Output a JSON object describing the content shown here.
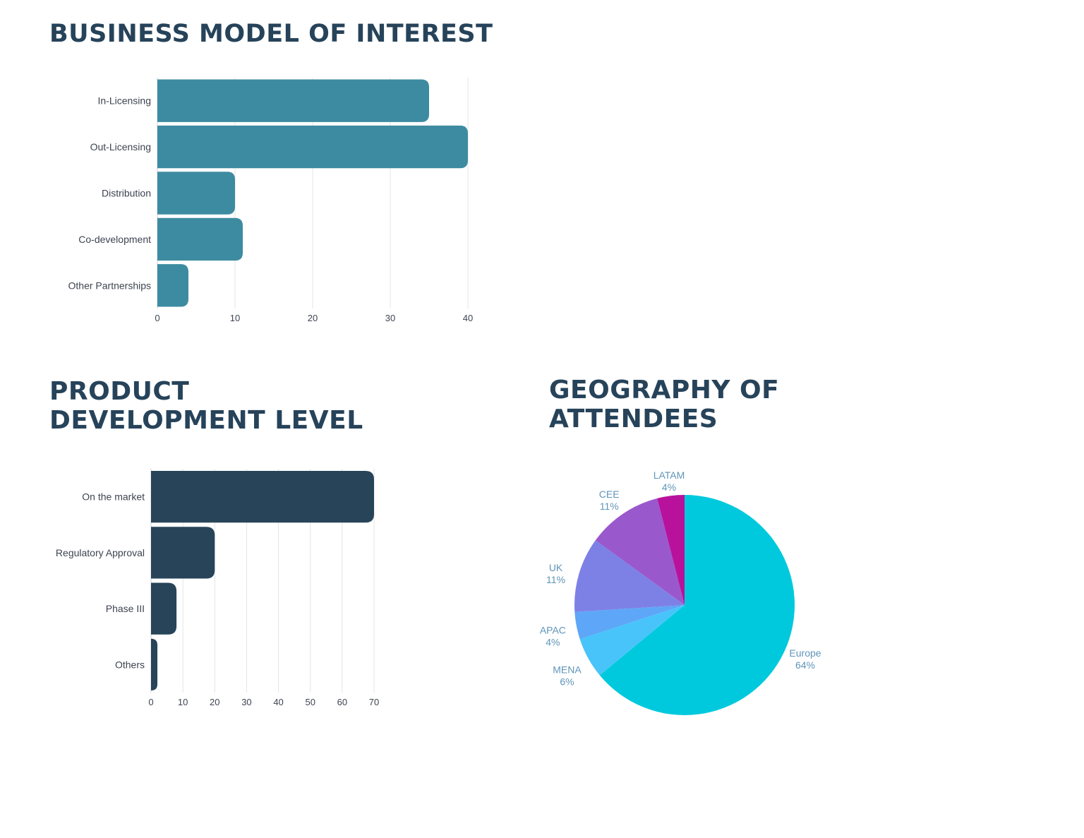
{
  "colors": {
    "title": "#26435a",
    "grid": "#e4e4e4",
    "label": "#3d4450",
    "pie_label": "#5f95b8"
  },
  "chart_data": [
    {
      "id": "business-model",
      "type": "bar",
      "orientation": "horizontal",
      "title": "BUSINESS MODEL OF INTEREST",
      "categories": [
        "In-Licensing",
        "Out-Licensing",
        "Distribution",
        "Co-development",
        "Other Partnerships"
      ],
      "values": [
        35,
        40,
        10,
        11,
        4
      ],
      "xlim": [
        0,
        40
      ],
      "xticks": [
        0,
        10,
        20,
        30,
        40
      ],
      "grid": true,
      "color": "#3d8ba1"
    },
    {
      "id": "product-development",
      "type": "bar",
      "orientation": "horizontal",
      "title": "PRODUCT\nDEVELOPMENT LEVEL",
      "categories": [
        "On the market",
        "Regulatory Approval",
        "Phase III",
        "Others"
      ],
      "values": [
        70,
        20,
        8,
        2
      ],
      "xlim": [
        0,
        70
      ],
      "xticks": [
        0,
        10,
        20,
        30,
        40,
        50,
        60,
        70
      ],
      "grid": true,
      "color": "#274459"
    },
    {
      "id": "geography",
      "type": "pie",
      "title": "GEOGRAPHY OF\nATTENDEES",
      "slices": [
        {
          "label": "Europe",
          "value": 64,
          "display": "64%",
          "color": "#00c9dd"
        },
        {
          "label": "MENA",
          "value": 6,
          "display": "6%",
          "color": "#48c4fa"
        },
        {
          "label": "APAC",
          "value": 4,
          "display": "4%",
          "color": "#5ea6f7"
        },
        {
          "label": "UK",
          "value": 11,
          "display": "11%",
          "color": "#7d81e6"
        },
        {
          "label": "CEE",
          "value": 11,
          "display": "11%",
          "color": "#9a58cd"
        },
        {
          "label": "LATAM",
          "value": 4,
          "display": "4%",
          "color": "#b8129c"
        }
      ],
      "start": "12 o'clock",
      "direction": "clockwise"
    }
  ]
}
